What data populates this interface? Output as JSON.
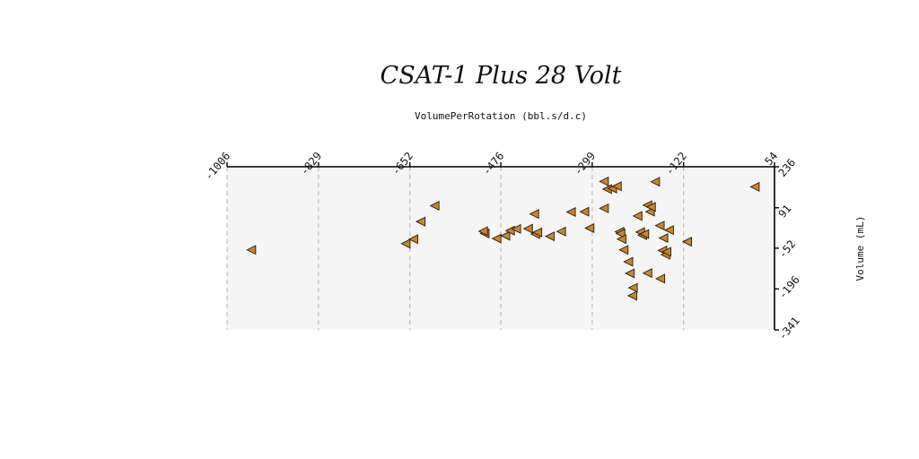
{
  "chart_data": {
    "type": "scatter",
    "title": "CSAT-1 Plus 28 Volt",
    "xlabel": "VolumePerRotation (bbl.s/d.c)",
    "ylabel": "Volume (mL)",
    "xlim": [
      -1006,
      54
    ],
    "ylim": [
      -341,
      236
    ],
    "x_ticks": [
      -1006,
      -829,
      -652,
      -476,
      -299,
      -122,
      54
    ],
    "y_ticks": [
      236,
      91,
      -52,
      -196,
      -341
    ],
    "x_tick_labels": [
      "-1006",
      "-829",
      "-652",
      "-476",
      "-299",
      "-122",
      "54"
    ],
    "y_tick_labels": [
      "236",
      "91",
      "-52",
      "-196",
      "-341"
    ],
    "grid": true,
    "x_axis_position": "top",
    "y_axis_position": "right",
    "colors": {
      "marker_fill": "#c8862e",
      "marker_edge": "#2a1a05",
      "plot_background": "#f5f5f5",
      "grid": "#b4b4b4"
    },
    "marker": "left-pointing-triangle",
    "series": [
      {
        "x": [
          -959,
          -660,
          -645,
          -631,
          -604,
          -507,
          -510,
          -484,
          -467,
          -458,
          -446,
          -423,
          -411,
          -409,
          -405,
          -381,
          -359,
          -340,
          -314,
          -304,
          -276,
          -276,
          -270,
          -260,
          -251,
          -246,
          -244,
          -242,
          -238,
          -229,
          -226,
          -221,
          -220,
          -211,
          -206,
          -202,
          -198,
          -192,
          -192,
          -187,
          -185,
          -177,
          -168,
          -167,
          -163,
          -161,
          -157,
          -155,
          -150,
          -115,
          16
        ],
        "y": [
          -58,
          -36,
          -20,
          42,
          98,
          0,
          8,
          -18,
          -8,
          10,
          16,
          17,
          69,
          -2,
          4,
          -10,
          7,
          76,
          77,
          19,
          89,
          184,
          157,
          159,
          167,
          6,
          0,
          -20,
          -58,
          -100,
          -141,
          -220,
          -192,
          62,
          5,
          -6,
          -2,
          100,
          -140,
          77,
          94,
          183,
          28,
          -160,
          -60,
          -16,
          -75,
          -65,
          12,
          -29,
          165
        ]
      }
    ]
  }
}
